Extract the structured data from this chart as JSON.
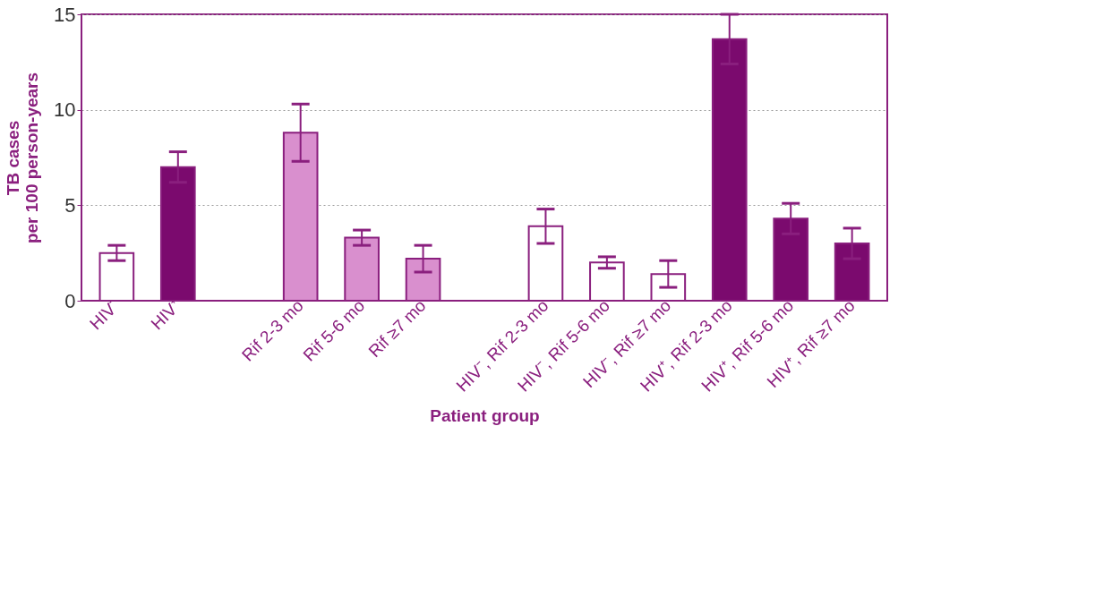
{
  "chart_data": {
    "type": "bar",
    "xlabel": "Patient group",
    "ylabel": "TB cases\nper 100 person-years",
    "categories": [
      "HIV⁻",
      "HIV⁺",
      null,
      "Rif 2-3 mo",
      "Rif 5-6 mo",
      "Rif ≥7 mo",
      null,
      "HIV⁻, Rif 2-3 mo",
      "HIV⁻, Rif 5-6 mo",
      "HIV⁻, Rif ≥7 mo",
      "HIV⁺, Rif 2-3 mo",
      "HIV⁺, Rif 5-6 mo",
      "HIV⁺, Rif ≥7 mo"
    ],
    "values": [
      2.5,
      7.0,
      null,
      8.8,
      3.3,
      2.2,
      null,
      3.9,
      2.0,
      1.4,
      13.7,
      4.3,
      3.0
    ],
    "errors": [
      0.4,
      0.8,
      null,
      1.5,
      0.4,
      0.7,
      null,
      0.9,
      0.3,
      0.7,
      1.3,
      0.8,
      0.8
    ],
    "colors": [
      "#ffffff",
      "#7b0a6e",
      "#ffffff",
      "#d98fce",
      "#d98fce",
      "#d98fce",
      "#ffffff",
      "#ffffff",
      "#ffffff",
      "#ffffff",
      "#7b0a6e",
      "#7b0a6e",
      "#7b0a6e"
    ],
    "ylim": [
      0,
      15
    ],
    "yticks": [
      0,
      5,
      10,
      15
    ],
    "grid": "y"
  }
}
